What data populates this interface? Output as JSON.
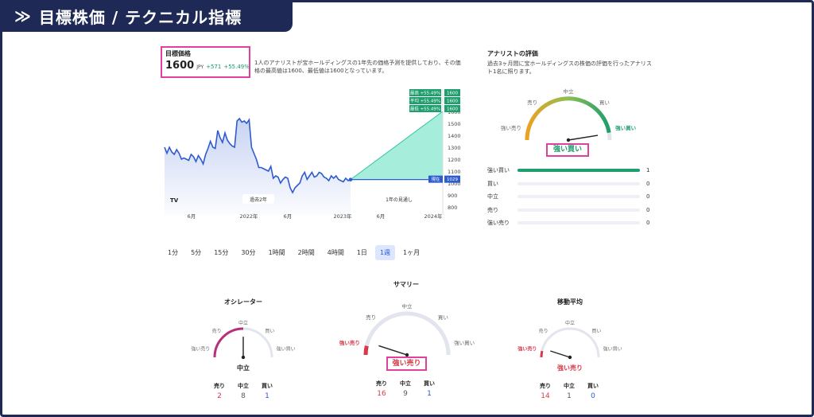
{
  "banner": {
    "chevron": "≫",
    "title": "目標株価 / テクニカル指標"
  },
  "target": {
    "label": "目標価格",
    "price": "1600",
    "currency": "JPY",
    "change_abs": "+571",
    "change_pct": "+55.49%",
    "description": "1人のアナリストが宝ホールディングスの1年先の価格予測を提供しており、その価格の最高値は1600、最低値は1600となっています。"
  },
  "chart_data": {
    "type": "line",
    "series": [
      {
        "values": [
          1300,
          1250,
          1300,
          1260,
          1240,
          1280,
          1250,
          1200,
          1210,
          1200,
          1190,
          1240,
          1220,
          1180,
          1230,
          1200,
          1160,
          1240,
          1290,
          1350,
          1300,
          1290,
          1440,
          1380,
          1340,
          1420,
          1360,
          1330,
          1310,
          1300,
          1520,
          1540,
          1510,
          1520,
          1500,
          1530,
          1300,
          1250,
          1200,
          1130,
          1130,
          1120,
          1110,
          1100,
          1140,
          1040,
          1060,
          1050,
          1000,
          1030,
          1050,
          1040,
          960,
          920,
          960,
          980,
          1000,
          1060,
          1090,
          1030,
          1060,
          1090,
          1050,
          1060,
          1090,
          1080,
          1050,
          1040,
          1020,
          1060,
          1040,
          1060,
          1030,
          1020,
          1010,
          1040,
          1020,
          1029
        ]
      }
    ],
    "forecast": {
      "current": 1029,
      "high": 1600,
      "avg": 1600,
      "low": 1600
    },
    "ylim": [
      800,
      1600
    ],
    "y_ticks": [
      "1600",
      "1500",
      "1400",
      "1300",
      "1200",
      "1100",
      "1000",
      "900",
      "800"
    ],
    "x_ticks": [
      "6月",
      "2022年",
      "6月",
      "2023年",
      "6月",
      "2024年"
    ],
    "labels": {
      "past": "過去2年",
      "forecast_period": "1年の見通し",
      "high": "最高 +55.49%",
      "avg": "平均 +55.49%",
      "low": "最低 +55.49%",
      "high_val": "1600",
      "avg_val": "1600",
      "low_val": "1600",
      "current": "現在",
      "current_val": "1029",
      "logo": "TV"
    }
  },
  "timeframes": [
    {
      "label": "1分",
      "active": false
    },
    {
      "label": "5分",
      "active": false
    },
    {
      "label": "15分",
      "active": false
    },
    {
      "label": "30分",
      "active": false
    },
    {
      "label": "1時間",
      "active": false
    },
    {
      "label": "2時間",
      "active": false
    },
    {
      "label": "4時間",
      "active": false
    },
    {
      "label": "1日",
      "active": false
    },
    {
      "label": "1週",
      "active": true
    },
    {
      "label": "1ヶ月",
      "active": false
    }
  ],
  "analyst": {
    "title": "アナリストの評価",
    "description": "過去3ヶ月間に宝ホールディングスの株価の評価を行ったアナリスト1名に照ります。",
    "gauge": {
      "strong_sell": "強い売り",
      "sell": "売り",
      "neutral": "中立",
      "buy": "買い",
      "strong_buy": "強い買い",
      "needle_value": 0.95
    },
    "verdict": "強い買い",
    "ratings": [
      {
        "label": "強い買い",
        "count": "1",
        "fraction": 1
      },
      {
        "label": "買い",
        "count": "0",
        "fraction": 0
      },
      {
        "label": "中立",
        "count": "0",
        "fraction": 0
      },
      {
        "label": "売り",
        "count": "0",
        "fraction": 0
      },
      {
        "label": "強い売り",
        "count": "0",
        "fraction": 0
      }
    ]
  },
  "summary_title": "サマリー",
  "gauges": {
    "oscillator": {
      "title": "オシレーター",
      "verdict": "中立",
      "strong_sell": "強い売り",
      "sell": "売り",
      "neutral": "中立",
      "buy": "買い",
      "strong_buy": "強い買い",
      "needle_value": 0.5,
      "counts": {
        "sell_label": "売り",
        "neutral_label": "中立",
        "buy_label": "買い",
        "sell": "2",
        "neutral": "8",
        "buy": "1"
      }
    },
    "summary": {
      "verdict": "強い売り",
      "strong_sell": "強い売り",
      "sell": "売り",
      "neutral": "中立",
      "buy": "買い",
      "strong_buy": "強い買い",
      "needle_value": 0.1,
      "counts": {
        "sell_label": "売り",
        "neutral_label": "中立",
        "buy_label": "買い",
        "sell": "16",
        "neutral": "9",
        "buy": "1"
      }
    },
    "moving_average": {
      "title": "移動平均",
      "verdict": "強い売り",
      "strong_sell": "強い売り",
      "sell": "売り",
      "neutral": "中立",
      "buy": "買い",
      "strong_buy": "強い買い",
      "needle_value": 0.1,
      "counts": {
        "sell_label": "売り",
        "neutral_label": "中立",
        "buy_label": "買い",
        "sell": "14",
        "neutral": "1",
        "buy": "0"
      }
    }
  },
  "colors": {
    "navy": "#1e2a55",
    "green": "#1f9e6e",
    "red": "#d63a4a",
    "blue": "#2a58d8",
    "highlight": "#e040a0"
  }
}
